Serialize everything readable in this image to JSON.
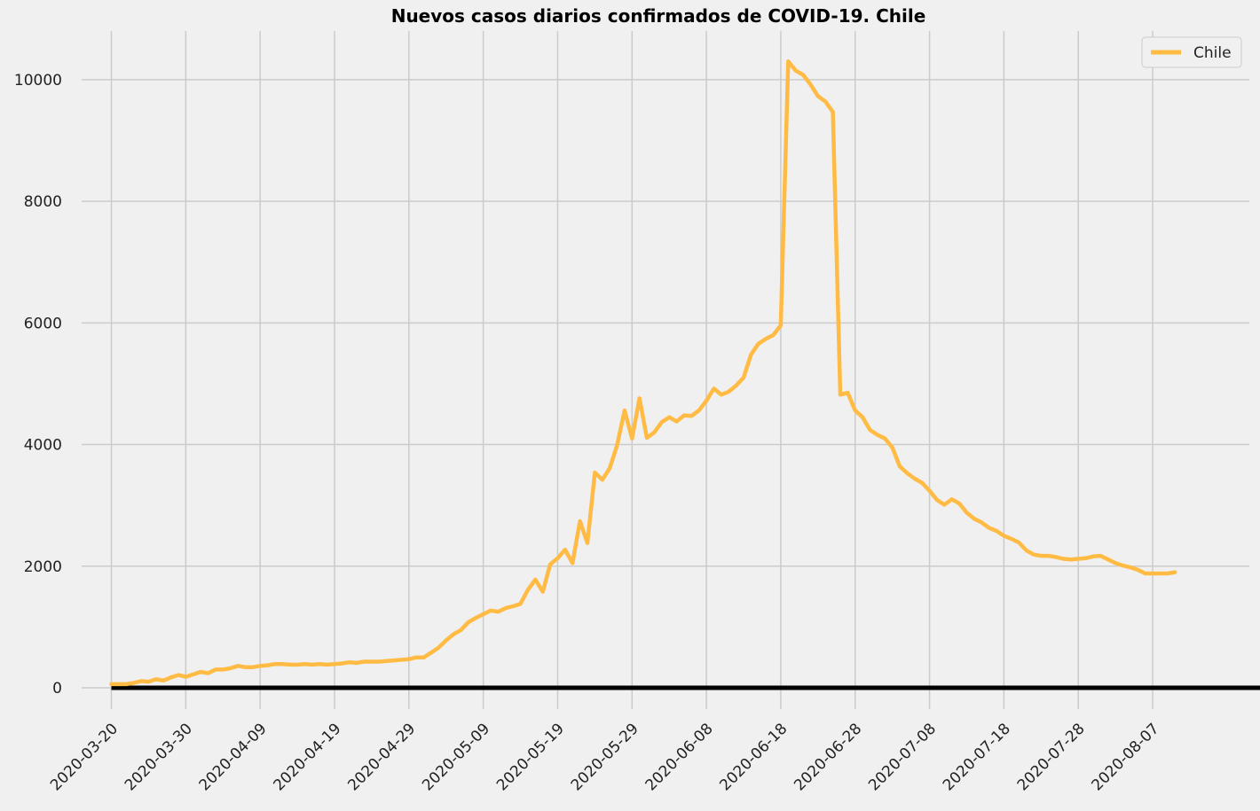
{
  "chart_data": {
    "type": "line",
    "title": "Nuevos casos diarios confirmados de COVID-19. Chile",
    "xlabel": "",
    "ylabel": "",
    "start_date": "2020-03-20",
    "x_tick_labels": [
      "2020-03-20",
      "2020-03-30",
      "2020-04-09",
      "2020-04-19",
      "2020-04-29",
      "2020-05-09",
      "2020-05-19",
      "2020-05-29",
      "2020-06-08",
      "2020-06-18",
      "2020-06-28",
      "2020-07-08",
      "2020-07-18",
      "2020-07-28",
      "2020-08-07"
    ],
    "y_ticks": [
      0,
      2000,
      4000,
      6000,
      8000,
      10000
    ],
    "y_tick_labels": [
      "0",
      "2000",
      "4000",
      "6000",
      "8000",
      "10000"
    ],
    "ylim": [
      -350,
      10800
    ],
    "xlim": [
      "2020-03-16",
      "2020-08-20"
    ],
    "grid": true,
    "legend_position": "top-right",
    "baseline": 0,
    "series": [
      {
        "name": "Chile",
        "color": "#ffbb44",
        "values": [
          60,
          60,
          60,
          80,
          110,
          100,
          140,
          120,
          170,
          210,
          180,
          220,
          260,
          240,
          300,
          300,
          320,
          360,
          340,
          340,
          360,
          370,
          390,
          390,
          380,
          380,
          390,
          380,
          390,
          380,
          390,
          400,
          420,
          410,
          430,
          430,
          430,
          440,
          450,
          460,
          470,
          500,
          500,
          580,
          660,
          780,
          880,
          950,
          1080,
          1150,
          1210,
          1270,
          1250,
          1310,
          1340,
          1380,
          1610,
          1780,
          1580,
          2030,
          2130,
          2270,
          2050,
          2740,
          2380,
          3540,
          3420,
          3610,
          3990,
          4560,
          4100,
          4760,
          4110,
          4200,
          4370,
          4450,
          4380,
          4480,
          4470,
          4560,
          4720,
          4920,
          4820,
          4870,
          4970,
          5100,
          5480,
          5660,
          5740,
          5800,
          5960,
          10300,
          10150,
          10080,
          9920,
          9730,
          9640,
          9470,
          4820,
          4850,
          4560,
          4450,
          4240,
          4160,
          4100,
          3950,
          3640,
          3530,
          3440,
          3370,
          3240,
          3090,
          3010,
          3100,
          3030,
          2880,
          2780,
          2720,
          2630,
          2580,
          2500,
          2450,
          2390,
          2260,
          2190,
          2170,
          2170,
          2150,
          2120,
          2110,
          2120,
          2130,
          2160,
          2170,
          2110,
          2050,
          2010,
          1980,
          1940,
          1880,
          1880,
          1880,
          1880,
          1900
        ]
      }
    ]
  }
}
